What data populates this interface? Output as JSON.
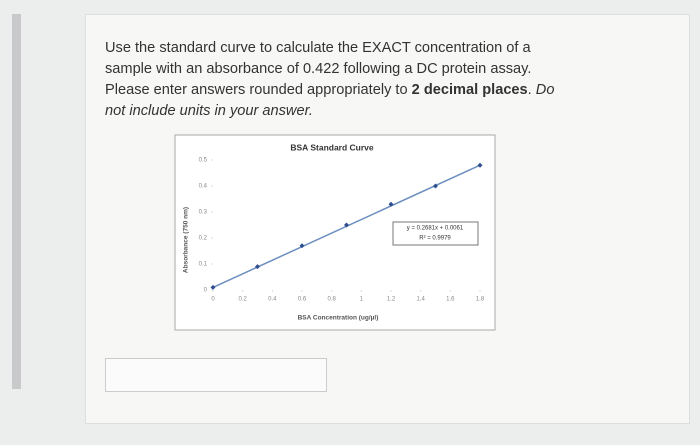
{
  "question": {
    "text": "Use the standard curve to calculate the EXACT concentration of a sample with an absorbance of 0.422 following a DC protein assay. Please enter answers rounded appropriately to ",
    "bold": "2 decimal places",
    "sep": ". ",
    "italic": "Do not include units in your answer."
  },
  "chart_data": {
    "type": "scatter",
    "title": "BSA Standard Curve",
    "x_label": "BSA Concentration (ug/µl)",
    "y_label": "Absorbance (750 nm)",
    "series": [
      {
        "name": "Absorbance",
        "color": "#2f4f8f",
        "x": [
          0,
          0.3,
          0.6,
          0.9,
          1.2,
          1.5,
          1.8
        ],
        "values": [
          0.01,
          0.09,
          0.17,
          0.25,
          0.33,
          0.4,
          0.48
        ]
      }
    ],
    "trendline_color": "#6c8fbf",
    "annotation": [
      "y = 0.2681x + 0.0061",
      "R² = 0.9979"
    ],
    "xlim": [
      0,
      1.8
    ],
    "xticks": [
      0,
      0.2,
      0.4,
      0.6,
      0.8,
      1,
      1.2,
      1.4,
      1.6,
      1.8
    ],
    "ylim": [
      0,
      0.5
    ],
    "yticks": [
      0,
      0.1,
      0.2,
      0.3,
      0.4,
      0.5
    ]
  }
}
